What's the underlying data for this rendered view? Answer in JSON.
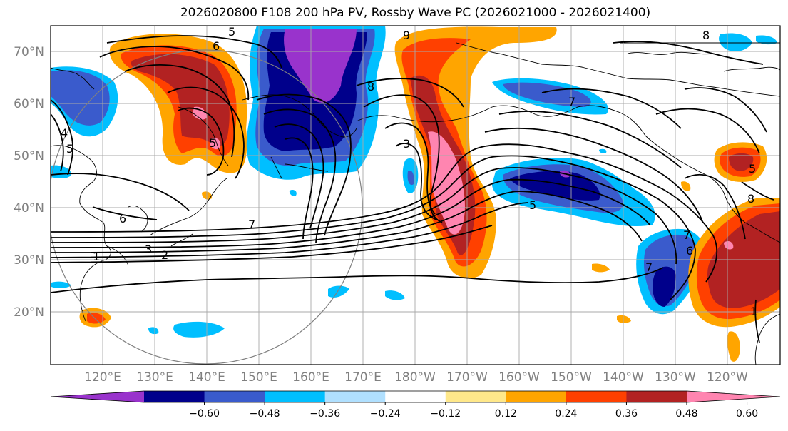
{
  "title": "2026020800 F108 200 hPa PV, Rossby Wave PC (2026021000 - 2026021400)",
  "lat_labels": [
    "70°N",
    "60°N",
    "50°N",
    "40°N",
    "30°N",
    "20°N"
  ],
  "lon_labels": [
    "120°E",
    "130°E",
    "140°E",
    "150°E",
    "160°E",
    "170°E",
    "180°W",
    "170°W",
    "160°W",
    "150°W",
    "140°W",
    "130°W",
    "120°W"
  ],
  "colorbar": {
    "ticks": [
      "−0.60",
      "−0.48",
      "−0.36",
      "−0.24",
      "−0.12",
      "0.12",
      "0.24",
      "0.36",
      "0.48",
      "0.60"
    ],
    "colors": [
      "#9933cc",
      "#00008b",
      "#3a5bcc",
      "#00bfff",
      "#b0e0ff",
      "#ffffff",
      "#ffe88a",
      "#ffa500",
      "#ff4000",
      "#b22222",
      "#ff85b0"
    ]
  },
  "contour_labels": [
    "5",
    "6",
    "9",
    "8",
    "8",
    "4",
    "5",
    "3",
    "5",
    "6",
    "7",
    "1",
    "2",
    "3",
    "5",
    "7",
    "6",
    "7",
    "7",
    "1",
    "8",
    "5"
  ]
}
